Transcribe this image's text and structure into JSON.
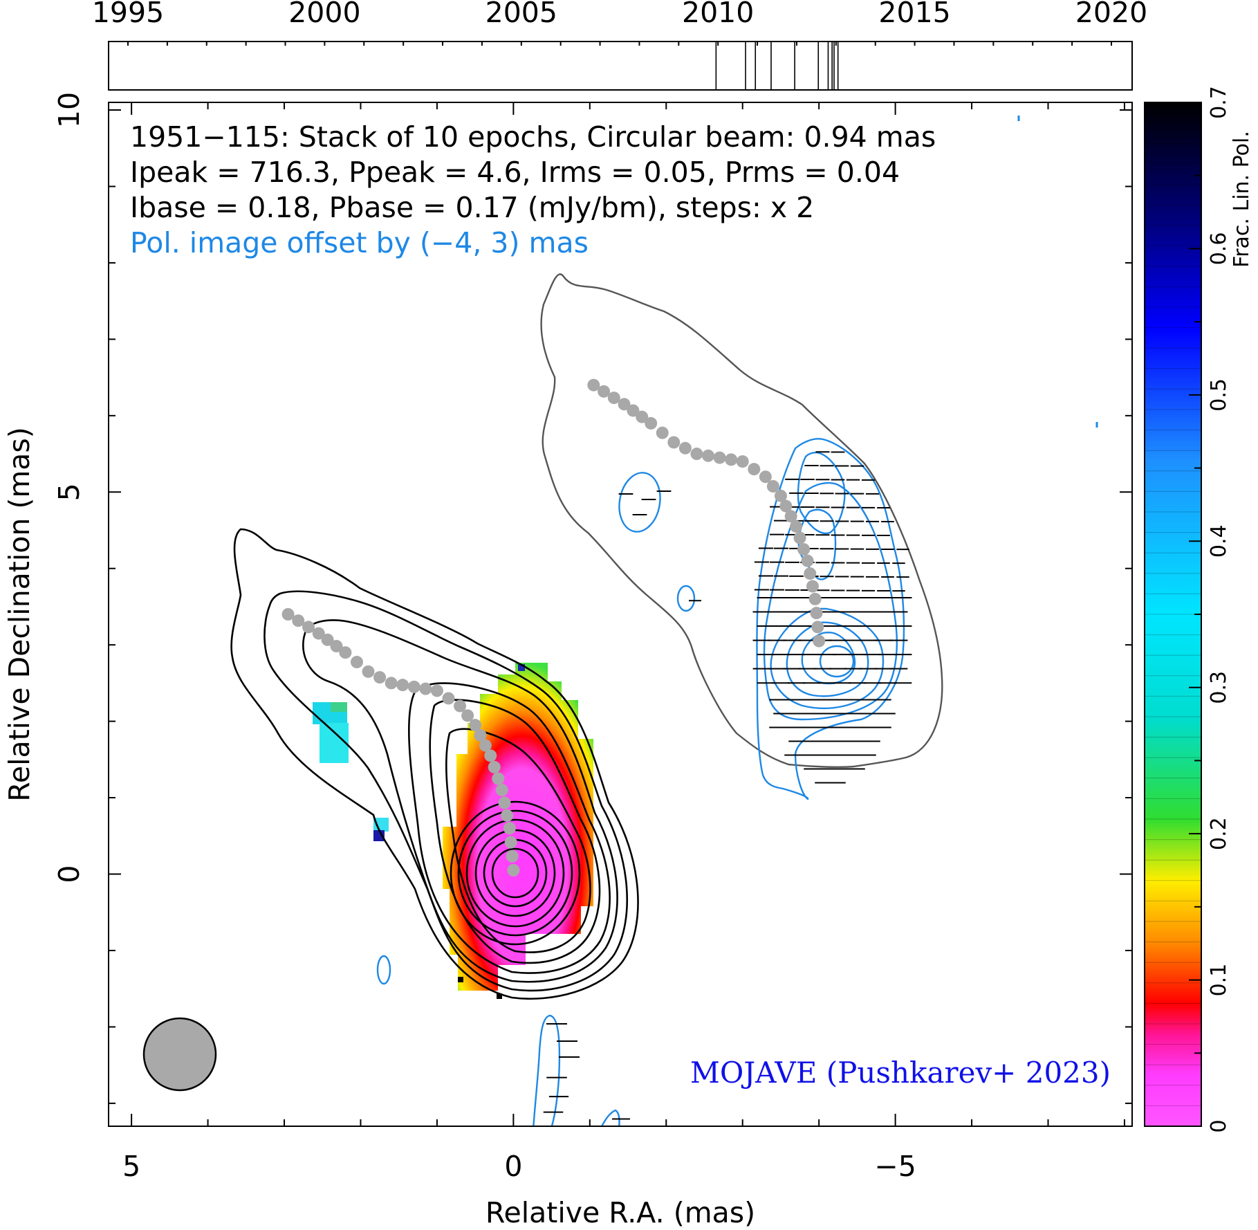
{
  "timeline": {
    "year_labels": [
      "1995",
      "2000",
      "2005",
      "2010",
      "2015",
      "2020"
    ],
    "epochs": [
      2009.95,
      2010.7,
      2010.95,
      2011.35,
      2011.95,
      2012.55,
      2012.8,
      2012.9,
      2012.95,
      2013.05
    ]
  },
  "header": {
    "line1": "1951−115: Stack of 10 epochs, Circular beam: 0.94 mas",
    "line2": "Ipeak = 716.3, Ppeak = 4.6, Irms = 0.05, Prms = 0.04",
    "line3": "Ibase = 0.18, Pbase = 0.17 (mJy/bm), steps: x 2",
    "offset_note": "Pol. image offset by (−4, 3) mas"
  },
  "credit": "MOJAVE (Pushkarev+ 2023)",
  "colors": {
    "offset_note": "#1e88e5",
    "credit": "#1010e8",
    "pol_contour": "#1e88e5",
    "ridge": "#a8a8a8",
    "beam": "#a9a9a9"
  },
  "chart_data": {
    "type": "heatmap",
    "source": "1951−115",
    "xlabel": "Relative R.A. (mas)",
    "ylabel": "Relative Declination (mas)",
    "x_tick_labels": [
      "5",
      "0",
      "−5"
    ],
    "y_tick_labels": [
      "0",
      "5",
      "10"
    ],
    "xlim": [
      5.3,
      -8.1
    ],
    "ylim": [
      -3.3,
      10.1
    ],
    "beam_diameter_mas": 0.94,
    "stats": {
      "Ipeak": 716.3,
      "Ppeak": 4.6,
      "Irms": 0.05,
      "Prms": 0.04,
      "Ibase": 0.18,
      "Pbase": 0.17,
      "unit": "mJy/bm",
      "contour_step": 2
    },
    "pol_offset_mas": [
      -4,
      3
    ],
    "colorbar": {
      "label": "Frac. Lin. Pol.",
      "tick_labels": [
        "0",
        "0.1",
        "0.2",
        "0.3",
        "0.4",
        "0.5",
        "0.6",
        "0.7"
      ],
      "range": [
        0,
        0.7
      ]
    },
    "ridge_line": {
      "x": [
        0,
        0.05,
        0.15,
        0.3,
        0.5,
        0.7,
        1.0,
        1.3,
        1.6,
        1.9,
        2.2,
        2.55,
        2.95
      ],
      "y": [
        0.05,
        0.6,
        1.1,
        1.55,
        1.95,
        2.2,
        2.4,
        2.45,
        2.5,
        2.65,
        2.9,
        3.15,
        3.4
      ]
    }
  }
}
